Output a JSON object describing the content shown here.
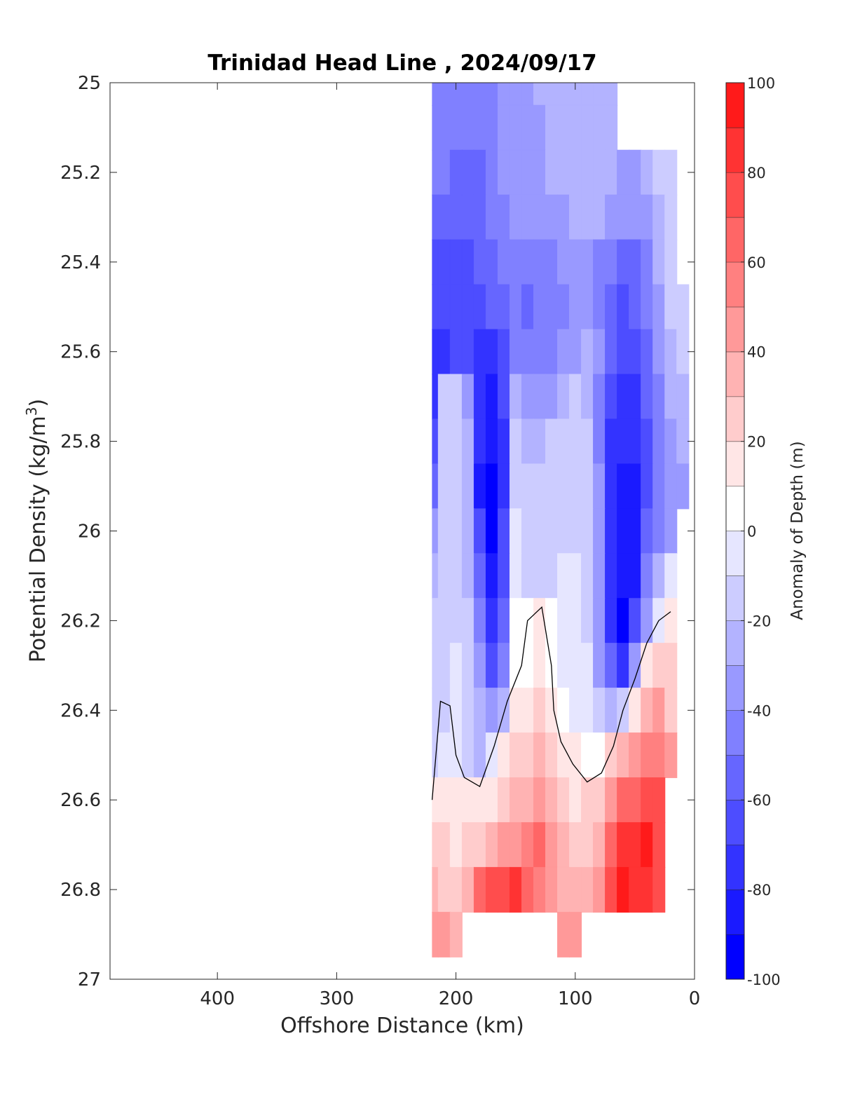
{
  "chart_data": {
    "type": "heatmap",
    "title": "Trinidad Head Line , 2024/09/17",
    "xlabel": "Offshore Distance (km)",
    "ylabel": "Potential Density (kg/m",
    "ylabel_superscript": "3",
    "ylabel_close": ")",
    "x_reversed": true,
    "y_reversed": true,
    "xlim": [
      0,
      490
    ],
    "ylim": [
      25,
      27
    ],
    "x_ticks": [
      {
        "value": 400,
        "label": "400"
      },
      {
        "value": 300,
        "label": "300"
      },
      {
        "value": 200,
        "label": "200"
      },
      {
        "value": 100,
        "label": "100"
      },
      {
        "value": 0,
        "label": "0"
      }
    ],
    "y_ticks": [
      {
        "value": 25,
        "label": "25"
      },
      {
        "value": 25.2,
        "label": "25.2"
      },
      {
        "value": 25.4,
        "label": "25.4"
      },
      {
        "value": 25.6,
        "label": "25.6"
      },
      {
        "value": 25.8,
        "label": "25.8"
      },
      {
        "value": 26,
        "label": "26"
      },
      {
        "value": 26.2,
        "label": "26.2"
      },
      {
        "value": 26.4,
        "label": "26.4"
      },
      {
        "value": 26.6,
        "label": "26.6"
      },
      {
        "value": 26.8,
        "label": "26.8"
      },
      {
        "value": 27,
        "label": "27"
      }
    ],
    "colorbar": {
      "label": "Anomaly of Depth (m)",
      "limits": [
        -100,
        100
      ],
      "step": 10,
      "ticks": [
        {
          "value": 100,
          "label": "100"
        },
        {
          "value": 80,
          "label": "80"
        },
        {
          "value": 60,
          "label": "60"
        },
        {
          "value": 40,
          "label": "40"
        },
        {
          "value": 20,
          "label": "20"
        },
        {
          "value": 0,
          "label": "0"
        },
        {
          "value": -20,
          "label": "-20"
        },
        {
          "value": -40,
          "label": "-40"
        },
        {
          "value": -60,
          "label": "-60"
        },
        {
          "value": -80,
          "label": "-80"
        },
        {
          "value": -100,
          "label": "-100"
        }
      ],
      "colors": {
        "-100": "#0000ff",
        "-90": "#1a1aff",
        "-80": "#3333ff",
        "-70": "#4d4dff",
        "-60": "#6666ff",
        "-50": "#8080ff",
        "-40": "#9999ff",
        "-30": "#b3b3ff",
        "-20": "#ccccff",
        "-10": "#e6e6ff",
        "0": "#ffffff",
        "10": "#ffe6e6",
        "20": "#ffcccc",
        "30": "#ffb3b3",
        "40": "#ff9999",
        "50": "#ff8080",
        "60": "#ff6666",
        "70": "#ff4d4d",
        "80": "#ff3333",
        "90": "#ff1a1a"
      }
    },
    "anomaly_grid": {
      "distance_km": [
        220,
        210,
        200,
        190,
        180,
        170,
        160,
        150,
        140,
        130,
        120,
        110,
        100,
        90,
        80,
        70,
        60,
        50,
        40,
        30,
        20,
        10
      ],
      "density": [
        25.0,
        25.1,
        25.2,
        25.3,
        25.4,
        25.5,
        25.6,
        25.7,
        25.8,
        25.9,
        26.0,
        26.1,
        26.2,
        26.3,
        26.4,
        26.5,
        26.6,
        26.7,
        26.8,
        26.9
      ],
      "values": [
        [
          -45,
          -45,
          -45,
          -48,
          -45,
          -42,
          -35,
          -35,
          -35,
          -30,
          -25,
          -25,
          -25,
          -25,
          -25,
          -25,
          null,
          null,
          null,
          null,
          null,
          null
        ],
        [
          -45,
          -45,
          -48,
          -50,
          -45,
          -42,
          -35,
          -35,
          -35,
          -32,
          -28,
          -25,
          -25,
          -25,
          -25,
          -25,
          null,
          null,
          null,
          null,
          null,
          null
        ],
        [
          -48,
          -50,
          -52,
          -53,
          -53,
          -45,
          -38,
          -36,
          -38,
          -35,
          -30,
          -28,
          -25,
          -25,
          -25,
          -30,
          -33,
          -33,
          -25,
          -18,
          -15,
          null
        ],
        [
          -55,
          -58,
          -60,
          -60,
          -55,
          -50,
          -42,
          -40,
          -40,
          -38,
          -35,
          -33,
          -30,
          -28,
          -30,
          -38,
          -40,
          -40,
          -33,
          -25,
          -18,
          null
        ],
        [
          -62,
          -63,
          -64,
          -62,
          -60,
          -55,
          -48,
          -45,
          -46,
          -45,
          -42,
          -40,
          -38,
          -38,
          -42,
          -50,
          -55,
          -53,
          -42,
          -30,
          -18,
          null
        ],
        [
          -68,
          -70,
          -70,
          -67,
          -64,
          -60,
          -55,
          -50,
          -52,
          -50,
          -47,
          -44,
          -40,
          -40,
          -46,
          -55,
          -62,
          -60,
          -50,
          -35,
          -20,
          -15
        ],
        [
          -72,
          -74,
          -70,
          -70,
          -75,
          -75,
          -65,
          -45,
          -50,
          -50,
          -48,
          -38,
          -32,
          -30,
          -40,
          -60,
          -68,
          -68,
          -55,
          -40,
          -25,
          -20
        ],
        [
          -80,
          -20,
          -15,
          -35,
          -80,
          -85,
          -70,
          -22,
          -32,
          -35,
          -33,
          -25,
          -18,
          -25,
          -48,
          -70,
          -75,
          -75,
          -58,
          -42,
          -30,
          -25
        ],
        [
          -70,
          -15,
          -12,
          -30,
          -80,
          -90,
          -72,
          -18,
          -22,
          -22,
          -20,
          -18,
          -15,
          -20,
          -42,
          -72,
          -80,
          -80,
          -62,
          -45,
          -35,
          -30
        ],
        [
          -55,
          -15,
          -12,
          -25,
          -82,
          -92,
          -72,
          -15,
          -18,
          -18,
          -18,
          -15,
          -15,
          -18,
          -40,
          -75,
          -85,
          -82,
          -62,
          -45,
          -38,
          -35
        ],
        [
          -40,
          -15,
          -12,
          -22,
          -70,
          -93,
          -68,
          -10,
          -15,
          -15,
          -15,
          -12,
          -12,
          -15,
          -40,
          -75,
          -88,
          -85,
          -60,
          -42,
          -35,
          null
        ],
        [
          -22,
          -15,
          -12,
          -22,
          -60,
          -88,
          -62,
          -5,
          -12,
          -12,
          -12,
          -10,
          -10,
          -15,
          -40,
          -78,
          -90,
          -82,
          -50,
          -25,
          -10,
          null
        ],
        [
          -20,
          -15,
          -12,
          -20,
          -50,
          -80,
          -55,
          0,
          4,
          10,
          0,
          -6,
          -8,
          -12,
          -38,
          -72,
          -92,
          -70,
          -38,
          -5,
          15,
          null
        ],
        [
          -15,
          -12,
          -10,
          -18,
          -40,
          -68,
          -50,
          2,
          8,
          12,
          4,
          -5,
          -5,
          -10,
          -32,
          -58,
          -80,
          -38,
          10,
          25,
          20,
          null
        ],
        [
          -15,
          -12,
          -10,
          -15,
          -30,
          -40,
          -25,
          12,
          18,
          22,
          15,
          2,
          -5,
          -8,
          -18,
          -30,
          -18,
          15,
          35,
          45,
          28,
          null
        ],
        [
          -14,
          -10,
          -10,
          -14,
          -25,
          -5,
          12,
          20,
          28,
          30,
          22,
          12,
          10,
          8,
          8,
          25,
          35,
          45,
          55,
          55,
          40,
          null
        ],
        [
          10,
          10,
          10,
          15,
          10,
          12,
          25,
          35,
          38,
          40,
          30,
          20,
          15,
          20,
          25,
          45,
          60,
          65,
          70,
          70,
          null,
          null
        ],
        [
          22,
          20,
          18,
          22,
          25,
          30,
          42,
          48,
          52,
          60,
          45,
          30,
          25,
          28,
          38,
          65,
          80,
          88,
          90,
          75,
          null,
          null
        ],
        [
          35,
          28,
          25,
          32,
          65,
          72,
          75,
          80,
          60,
          58,
          42,
          35,
          30,
          32,
          42,
          72,
          95,
          88,
          85,
          72,
          null,
          null
        ],
        [
          45,
          40,
          35,
          null,
          null,
          null,
          null,
          null,
          null,
          null,
          null,
          45,
          42,
          null,
          null,
          null,
          null,
          null,
          null,
          null,
          null,
          null
        ]
      ]
    },
    "zero_contour": [
      [
        220,
        26.6
      ],
      [
        213,
        26.38
      ],
      [
        205,
        26.39
      ],
      [
        200,
        26.5
      ],
      [
        193,
        26.55
      ],
      [
        180,
        26.57
      ],
      [
        168,
        26.48
      ],
      [
        157,
        26.38
      ],
      [
        145,
        26.3
      ],
      [
        140,
        26.2
      ],
      [
        128,
        26.17
      ],
      [
        120,
        26.3
      ],
      [
        118,
        26.4
      ],
      [
        112,
        26.47
      ],
      [
        102,
        26.52
      ],
      [
        90,
        26.56
      ],
      [
        78,
        26.54
      ],
      [
        68,
        26.48
      ],
      [
        60,
        26.4
      ],
      [
        50,
        26.33
      ],
      [
        40,
        26.25
      ],
      [
        30,
        26.2
      ],
      [
        20,
        26.18
      ]
    ]
  }
}
